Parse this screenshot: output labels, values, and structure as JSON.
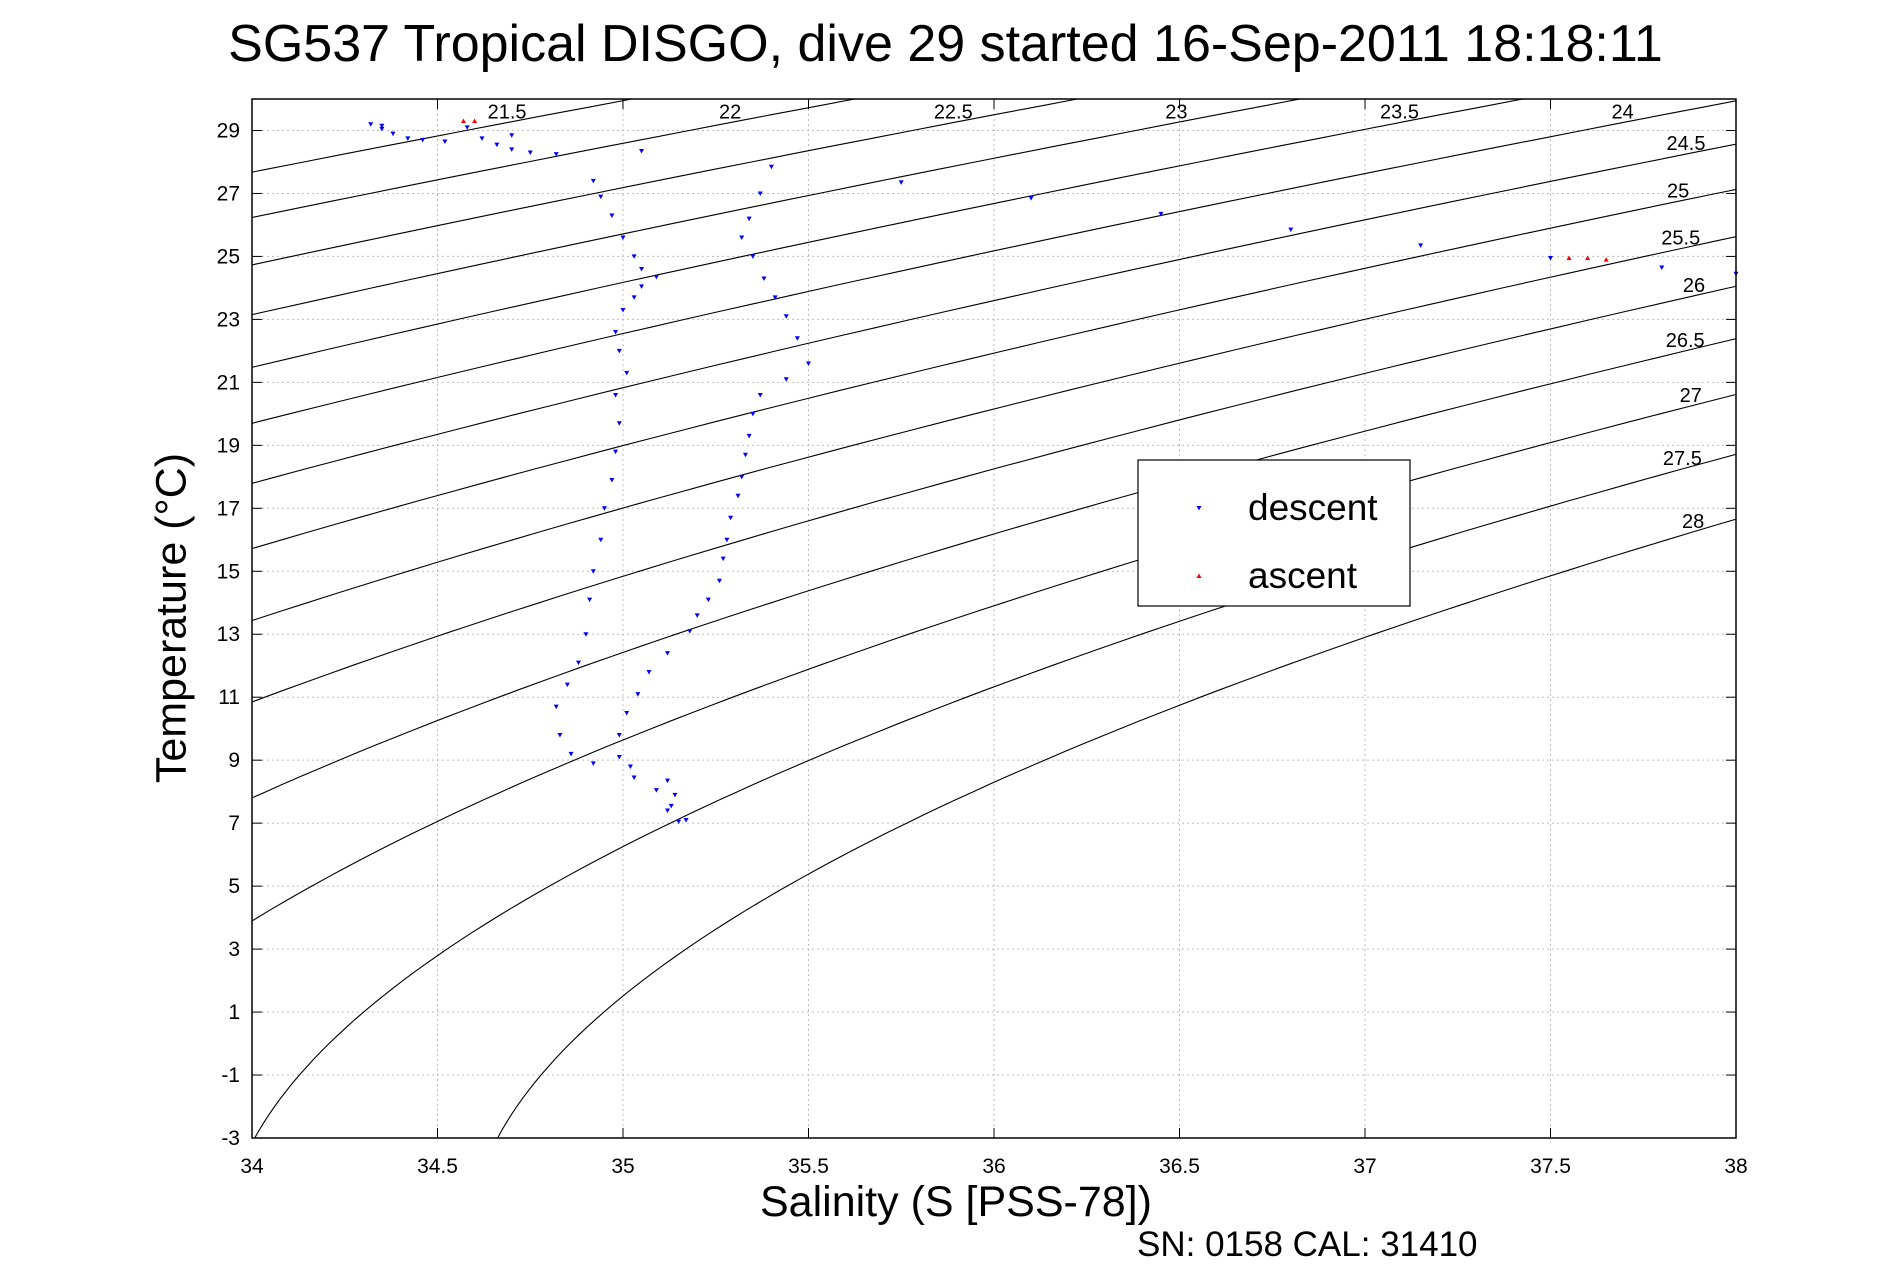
{
  "title": "SG537 Tropical DISGO, dive 29 started 16-Sep-2011 18:18:11",
  "footer": "SN: 0158  CAL: 31410",
  "chart_data": {
    "type": "scatter",
    "xlabel": "Salinity (S [PSS-78])",
    "ylabel": "Temperature (°C)",
    "xlim": [
      34,
      38
    ],
    "ylim": [
      -3,
      30
    ],
    "xticks": [
      "34",
      "34.5",
      "35",
      "35.5",
      "36",
      "36.5",
      "37",
      "37.5",
      "38"
    ],
    "yticks": [
      "-3",
      "-1",
      "1",
      "3",
      "5",
      "7",
      "9",
      "11",
      "13",
      "15",
      "17",
      "19",
      "21",
      "23",
      "25",
      "27",
      "29"
    ],
    "grid": true,
    "legend_position": "center-right",
    "colors": {
      "descent": "#0000ff",
      "ascent": "#ff0000",
      "contour": "#000000"
    },
    "series": [
      {
        "name": "descent",
        "marker": "down-triangle",
        "points": [
          [
            34.32,
            29.2
          ],
          [
            34.35,
            29.05
          ],
          [
            34.38,
            28.9
          ],
          [
            34.42,
            28.75
          ],
          [
            34.46,
            28.7
          ],
          [
            34.52,
            28.65
          ],
          [
            34.58,
            29.1
          ],
          [
            34.62,
            28.75
          ],
          [
            34.66,
            28.55
          ],
          [
            34.7,
            28.4
          ],
          [
            34.75,
            28.3
          ],
          [
            34.82,
            28.25
          ],
          [
            34.92,
            27.4
          ],
          [
            34.94,
            26.9
          ],
          [
            34.97,
            26.3
          ],
          [
            35.0,
            25.6
          ],
          [
            35.03,
            25.0
          ],
          [
            35.05,
            24.6
          ],
          [
            35.09,
            24.35
          ],
          [
            35.05,
            24.05
          ],
          [
            35.03,
            23.7
          ],
          [
            35.0,
            23.3
          ],
          [
            34.98,
            22.6
          ],
          [
            34.99,
            22.0
          ],
          [
            35.01,
            21.3
          ],
          [
            34.98,
            20.6
          ],
          [
            34.99,
            19.7
          ],
          [
            34.98,
            18.8
          ],
          [
            34.97,
            17.9
          ],
          [
            34.95,
            17.0
          ],
          [
            34.94,
            16.0
          ],
          [
            34.92,
            15.0
          ],
          [
            34.91,
            14.1
          ],
          [
            34.9,
            13.0
          ],
          [
            34.88,
            12.1
          ],
          [
            34.85,
            11.4
          ],
          [
            34.82,
            10.7
          ],
          [
            34.83,
            9.8
          ],
          [
            34.86,
            9.2
          ],
          [
            34.92,
            8.9
          ],
          [
            35.02,
            8.8
          ],
          [
            35.12,
            8.35
          ],
          [
            35.14,
            7.9
          ],
          [
            35.12,
            7.4
          ],
          [
            35.15,
            7.05
          ],
          [
            35.17,
            7.1
          ],
          [
            35.13,
            7.55
          ],
          [
            35.09,
            8.05
          ],
          [
            35.03,
            8.45
          ],
          [
            34.99,
            9.1
          ],
          [
            34.99,
            9.8
          ],
          [
            35.01,
            10.5
          ],
          [
            35.04,
            11.1
          ],
          [
            35.07,
            11.8
          ],
          [
            35.12,
            12.4
          ],
          [
            35.18,
            13.1
          ],
          [
            35.2,
            13.6
          ],
          [
            35.23,
            14.1
          ],
          [
            35.26,
            14.7
          ],
          [
            35.27,
            15.4
          ],
          [
            35.28,
            16.0
          ],
          [
            35.29,
            16.7
          ],
          [
            35.31,
            17.4
          ],
          [
            35.32,
            18.0
          ],
          [
            35.33,
            18.7
          ],
          [
            35.34,
            19.3
          ],
          [
            35.35,
            20.0
          ],
          [
            35.37,
            20.6
          ],
          [
            35.44,
            21.1
          ],
          [
            35.5,
            21.6
          ],
          [
            35.47,
            22.4
          ],
          [
            35.44,
            23.1
          ],
          [
            35.41,
            23.7
          ],
          [
            35.38,
            24.3
          ],
          [
            35.35,
            25.0
          ],
          [
            35.32,
            25.6
          ],
          [
            35.34,
            26.2
          ],
          [
            35.37,
            27.0
          ],
          [
            34.35,
            29.15
          ],
          [
            34.7,
            28.85
          ],
          [
            35.05,
            28.35
          ],
          [
            35.4,
            27.85
          ],
          [
            35.75,
            27.35
          ],
          [
            36.1,
            26.85
          ],
          [
            36.45,
            26.35
          ],
          [
            36.8,
            25.85
          ],
          [
            37.15,
            25.35
          ],
          [
            37.5,
            24.95
          ],
          [
            37.8,
            24.65
          ],
          [
            38.0,
            24.45
          ]
        ]
      },
      {
        "name": "ascent",
        "marker": "up-triangle",
        "points": [
          [
            34.57,
            29.3
          ],
          [
            34.6,
            29.3
          ],
          [
            37.55,
            24.95
          ],
          [
            37.6,
            24.95
          ],
          [
            37.65,
            24.9
          ]
        ]
      }
    ],
    "contour_labels": [
      "21.5",
      "22",
      "22.5",
      "23",
      "23.5",
      "24",
      "24.5",
      "25",
      "25.5",
      "26",
      "26.5",
      "27",
      "27.5",
      "28"
    ]
  }
}
